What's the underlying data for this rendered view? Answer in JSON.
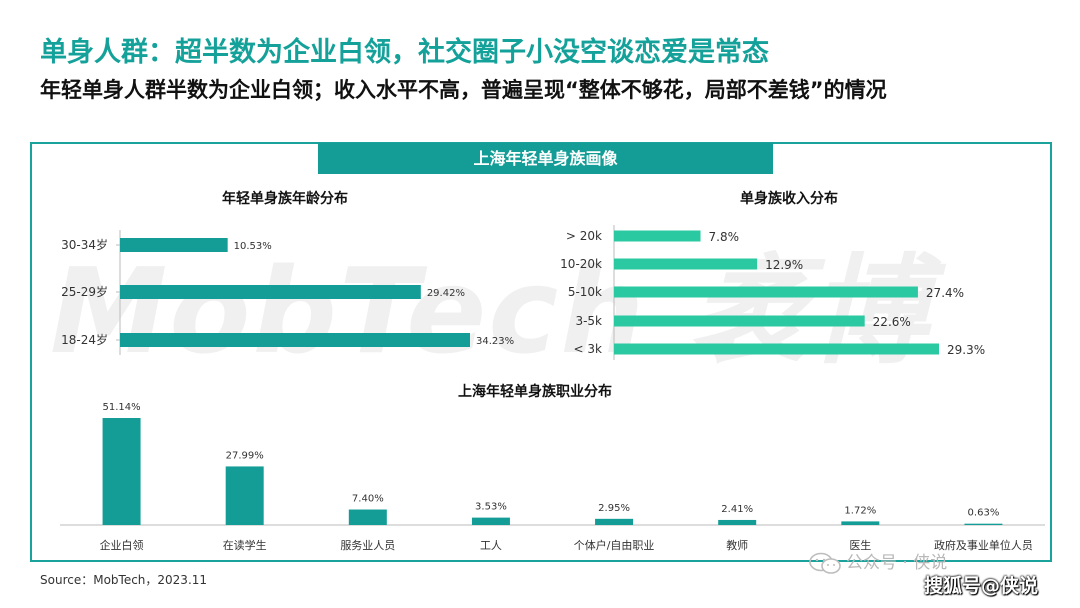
{
  "page": {
    "title": "单身人群：超半数为企业白领，社交圈子小没空谈恋爱是常态",
    "subtitle": "年轻单身人群半数为企业白领；收入水平不高，普遍呈现“整体不够花，局部不差钱”的情况",
    "panel_header": "上海年轻单身族画像",
    "watermark": "MobTech 袤博",
    "source": "Source：MobTech，2023.11",
    "brand_mark": "公众号 · 侠说",
    "sohu": "搜狐号@侠说"
  },
  "colors": {
    "accent": "#149d96",
    "income_bar": "#2ac9a2",
    "age_bar": "#149d96",
    "job_bar": "#149d96"
  },
  "chart_data": [
    {
      "type": "bar",
      "orientation": "horizontal",
      "title": "年轻单身族年龄分布",
      "categories": [
        "30-34岁",
        "25-29岁",
        "18-24岁"
      ],
      "values": [
        10.53,
        29.42,
        34.23
      ],
      "value_labels": [
        "10.53%",
        "29.42%",
        "34.23%"
      ],
      "unit": "%"
    },
    {
      "type": "bar",
      "orientation": "horizontal",
      "title": "单身族收入分布",
      "categories": [
        "> 20k",
        "10-20k",
        "5-10k",
        "3-5k",
        "< 3k"
      ],
      "values": [
        7.8,
        12.9,
        27.4,
        22.6,
        29.3
      ],
      "value_labels": [
        "7.8%",
        "12.9%",
        "27.4%",
        "22.6%",
        "29.3%"
      ],
      "unit": "%"
    },
    {
      "type": "bar",
      "orientation": "vertical",
      "title": "上海年轻单身族职业分布",
      "categories": [
        "企业白领",
        "在读学生",
        "服务业人员",
        "工人",
        "个体户/自由职业",
        "教师",
        "医生",
        "政府及事业单位人员"
      ],
      "values": [
        51.14,
        27.99,
        7.4,
        3.53,
        2.95,
        2.41,
        1.72,
        0.63
      ],
      "value_labels": [
        "51.14%",
        "27.99%",
        "7.40%",
        "3.53%",
        "2.95%",
        "2.41%",
        "1.72%",
        "0.63%"
      ],
      "unit": "%"
    }
  ]
}
